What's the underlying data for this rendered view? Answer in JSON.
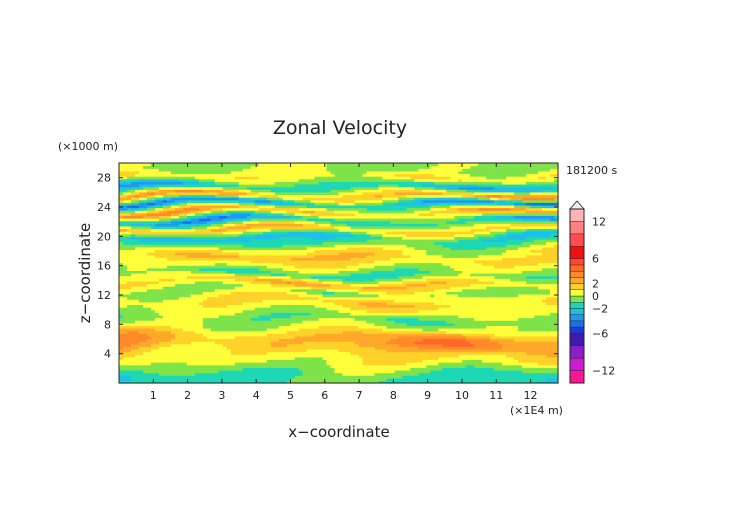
{
  "chart_data": {
    "type": "heatmap",
    "title": "Zonal Velocity",
    "xlabel": "x−coordinate",
    "ylabel": "z−coordinate",
    "x_unit_label": "(×1E4 m)",
    "y_unit_label": "(×1000 m)",
    "time_label": "181200 s",
    "xlim": [
      0,
      12.8
    ],
    "ylim": [
      0,
      30
    ],
    "x_ticks": [
      "1",
      "2",
      "3",
      "4",
      "5",
      "6",
      "7",
      "8",
      "9",
      "10",
      "11",
      "12"
    ],
    "y_ticks": [
      "4",
      "8",
      "12",
      "16",
      "20",
      "24",
      "28"
    ],
    "colorbar": {
      "tick_labels": [
        "12",
        "6",
        "2",
        "0",
        "−2",
        "−6",
        "−12"
      ],
      "tick_values": [
        12,
        6,
        2,
        0,
        -2,
        -6,
        -12
      ],
      "levels": [
        -14,
        -12,
        -10,
        -8,
        -6,
        -5,
        -4,
        -3,
        -2,
        -1,
        0,
        1,
        2,
        3,
        4,
        5,
        6,
        8,
        10,
        12,
        14
      ],
      "colors": [
        "#ff1493",
        "#d01ad0",
        "#8a1fc8",
        "#3f1ab3",
        "#1c3dd0",
        "#1f6ee8",
        "#1f99f0",
        "#1fc0e8",
        "#1ed8b5",
        "#7fe34a",
        "#ffff3a",
        "#ffd22a",
        "#ffa82a",
        "#ff8a2a",
        "#ff6a2a",
        "#ff4a2a",
        "#ee1111",
        "#ff4d4d",
        "#ff8080",
        "#ffb3b3"
      ]
    },
    "layers": [
      {
        "z": 1.0,
        "u": -1.8
      },
      {
        "z": 2.0,
        "u": -0.6
      },
      {
        "z": 3.0,
        "u": 0.8
      },
      {
        "z": 4.0,
        "u": 1.5
      },
      {
        "z": 5.3,
        "u": 3.6
      },
      {
        "z": 6.3,
        "u": 3.2
      },
      {
        "z": 7.5,
        "u": 0.2
      },
      {
        "z": 8.8,
        "u": -1.0
      },
      {
        "z": 10.0,
        "u": 0.6
      },
      {
        "z": 11.2,
        "u": 1.8
      },
      {
        "z": 12.4,
        "u": -0.6
      },
      {
        "z": 13.6,
        "u": 2.4
      },
      {
        "z": 14.8,
        "u": -1.5
      },
      {
        "z": 16.0,
        "u": 0.5
      },
      {
        "z": 17.2,
        "u": 2.3
      },
      {
        "z": 18.5,
        "u": -0.9
      },
      {
        "z": 19.6,
        "u": -3.0
      },
      {
        "z": 20.7,
        "u": 2.6
      },
      {
        "z": 21.9,
        "u": -3.6
      },
      {
        "z": 23.1,
        "u": 3.2
      },
      {
        "z": 24.3,
        "u": -4.4
      },
      {
        "z": 25.3,
        "u": 3.4
      },
      {
        "z": 26.5,
        "u": -3.2
      },
      {
        "z": 27.8,
        "u": 1.2
      },
      {
        "z": 29.0,
        "u": -0.4
      }
    ]
  }
}
